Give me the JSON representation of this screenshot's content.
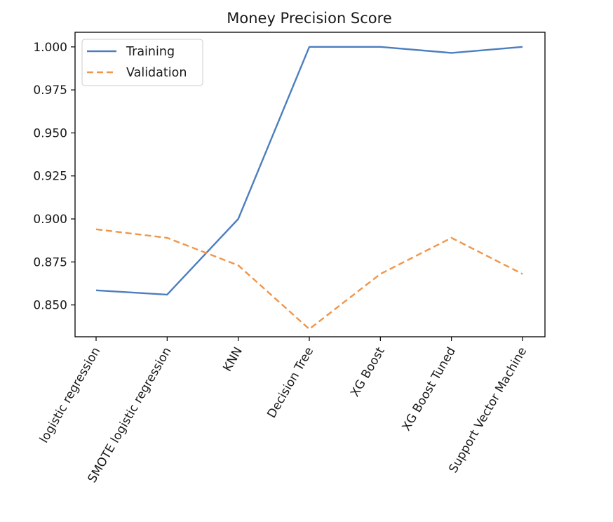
{
  "chart_data": {
    "type": "line",
    "title": "Money Precision Score",
    "xlabel": "",
    "ylabel": "",
    "categories": [
      "logistic regression",
      "SMOTE logistic regression",
      "KNN",
      "Decision Tree",
      "XG Boost",
      "XG Boost Tuned",
      "Support Vector Machine"
    ],
    "series": [
      {
        "name": "Training",
        "values": [
          0.8585,
          0.856,
          0.9,
          1.0,
          1.0,
          0.9965,
          1.0
        ],
        "color": "#4c7ebf",
        "style": "solid"
      },
      {
        "name": "Validation",
        "values": [
          0.894,
          0.889,
          0.873,
          0.836,
          0.868,
          0.889,
          0.868
        ],
        "color": "#f0954a",
        "style": "dashed"
      }
    ],
    "ylim": [
      0.8315,
      1.0085
    ],
    "yticks": [
      0.85,
      0.875,
      0.9,
      0.925,
      0.95,
      0.975,
      1.0
    ],
    "ytick_labels": [
      "0.850",
      "0.875",
      "0.900",
      "0.925",
      "0.950",
      "0.975",
      "1.000"
    ],
    "legend_position": "upper-left",
    "grid": false
  }
}
